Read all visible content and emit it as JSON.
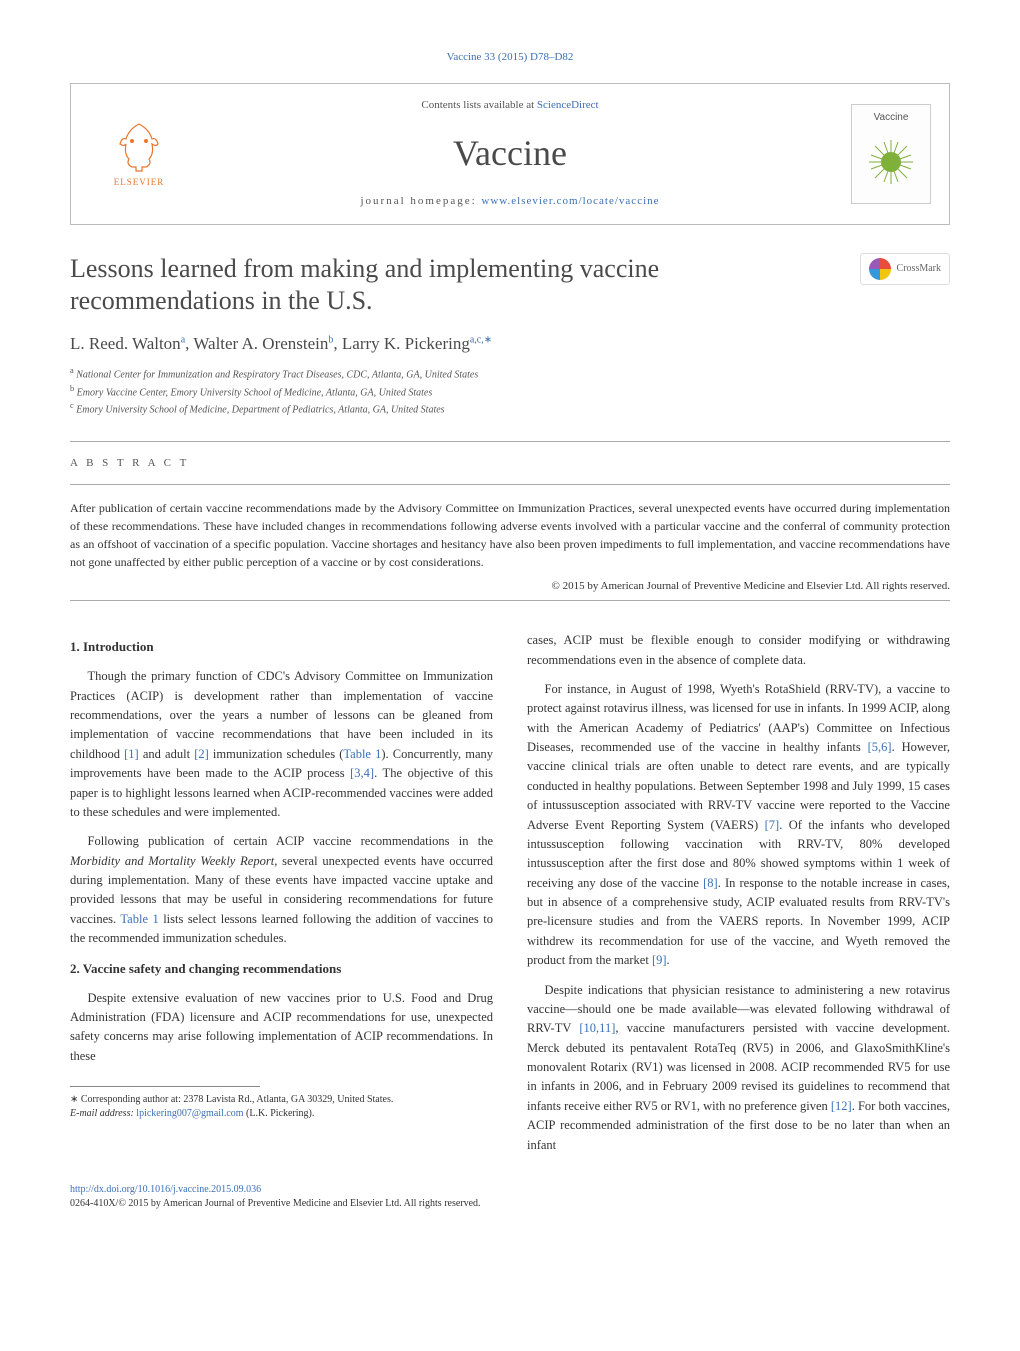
{
  "header": {
    "citation": "Vaccine 33 (2015) D78–D82",
    "contents_prefix": "Contents lists available at ",
    "contents_link": "ScienceDirect",
    "journal_name": "Vaccine",
    "homepage_prefix": "journal homepage: ",
    "homepage_link": "www.elsevier.com/locate/vaccine",
    "elsevier_label": "ELSEVIER",
    "cover_label": "Vaccine"
  },
  "crossmark": {
    "label": "CrossMark"
  },
  "title": "Lessons learned from making and implementing vaccine recommendations in the U.S.",
  "authors_html": "L. Reed. Walton<sup><a>a</a></sup>, Walter A. Orenstein<sup><a>b</a></sup>, Larry K. Pickering<sup><a>a,c,</a>∗</sup>",
  "affiliations": {
    "a": "National Center for Immunization and Respiratory Tract Diseases, CDC, Atlanta, GA, United States",
    "b": "Emory Vaccine Center, Emory University School of Medicine, Atlanta, GA, United States",
    "c": "Emory University School of Medicine, Department of Pediatrics, Atlanta, GA, United States"
  },
  "abstract": {
    "label": "A B S T R A C T",
    "body": "After publication of certain vaccine recommendations made by the Advisory Committee on Immunization Practices, several unexpected events have occurred during implementation of these recommendations. These have included changes in recommendations following adverse events involved with a particular vaccine and the conferral of community protection as an offshoot of vaccination of a specific population. Vaccine shortages and hesitancy have also been proven impediments to full implementation, and vaccine recommendations have not gone unaffected by either public perception of a vaccine or by cost considerations.",
    "copyright": "© 2015 by American Journal of Preventive Medicine and Elsevier Ltd. All rights reserved."
  },
  "sections": {
    "s1": {
      "heading": "1.  Introduction",
      "p1": "Though the primary function of CDC's Advisory Committee on Immunization Practices (ACIP) is development rather than implementation of vaccine recommendations, over the years a number of lessons can be gleaned from implementation of vaccine recommendations that have been included in its childhood [1] and adult [2] immunization schedules (Table 1). Concurrently, many improvements have been made to the ACIP process [3,4]. The objective of this paper is to highlight lessons learned when ACIP-recommended vaccines were added to these schedules and were implemented.",
      "p2": "Following publication of certain ACIP vaccine recommendations in the Morbidity and Mortality Weekly Report, several unexpected events have occurred during implementation. Many of these events have impacted vaccine uptake and provided lessons that may be useful in considering recommendations for future vaccines. Table 1 lists select lessons learned following the addition of vaccines to the recommended immunization schedules."
    },
    "s2": {
      "heading": "2.  Vaccine safety and changing recommendations",
      "p1": "Despite extensive evaluation of new vaccines prior to U.S. Food and Drug Administration (FDA) licensure and ACIP recommendations for use, unexpected safety concerns may arise following implementation of ACIP recommendations. In these",
      "p2": "cases, ACIP must be flexible enough to consider modifying or withdrawing recommendations even in the absence of complete data.",
      "p3": "For instance, in August of 1998, Wyeth's RotaShield (RRV-TV), a vaccine to protect against rotavirus illness, was licensed for use in infants. In 1999 ACIP, along with the American Academy of Pediatrics' (AAP's) Committee on Infectious Diseases, recommended use of the vaccine in healthy infants [5,6]. However, vaccine clinical trials are often unable to detect rare events, and are typically conducted in healthy populations. Between September 1998 and July 1999, 15 cases of intussusception associated with RRV-TV vaccine were reported to the Vaccine Adverse Event Reporting System (VAERS) [7]. Of the infants who developed intussusception following vaccination with RRV-TV, 80% developed intussusception after the first dose and 80% showed symptoms within 1 week of receiving any dose of the vaccine [8]. In response to the notable increase in cases, but in absence of a comprehensive study, ACIP evaluated results from RRV-TV's pre-licensure studies and from the VAERS reports. In November 1999, ACIP withdrew its recommendation for use of the vaccine, and Wyeth removed the product from the market [9].",
      "p4": "Despite indications that physician resistance to administering a new rotavirus vaccine—should one be made available—was elevated following withdrawal of RRV-TV [10,11], vaccine manufacturers persisted with vaccine development. Merck debuted its pentavalent RotaTeq (RV5) in 2006, and GlaxoSmithKline's monovalent Rotarix (RV1) was licensed in 2008. ACIP recommended RV5 for use in infants in 2006, and in February 2009 revised its guidelines to recommend that infants receive either RV5 or RV1, with no preference given [12]. For both vaccines, ACIP recommended administration of the first dose to be no later than when an infant"
    }
  },
  "footnote": {
    "star": "∗ Corresponding author at: 2378 Lavista Rd., Atlanta, GA 30329, United States.",
    "email_label": "E-mail address: ",
    "email": "lpickering007@gmail.com",
    "email_paren": " (L.K. Pickering)."
  },
  "doi": {
    "link": "http://dx.doi.org/10.1016/j.vaccine.2015.09.036",
    "issn_line": "0264-410X/© 2015 by American Journal of Preventive Medicine and Elsevier Ltd. All rights reserved."
  },
  "refs": {
    "r1": "[1]",
    "r2": "[2]",
    "r34": "[3,4]",
    "t1": "Table 1",
    "r56": "[5,6]",
    "r7": "[7]",
    "r8": "[8]",
    "r9": "[9]",
    "r1011": "[10,11]",
    "r12": "[12]"
  },
  "colors": {
    "link": "#3b6fb6",
    "elsevier": "#e8762d",
    "text": "#333333",
    "heading": "#4a4a4a",
    "rule": "#aaaaaa"
  }
}
